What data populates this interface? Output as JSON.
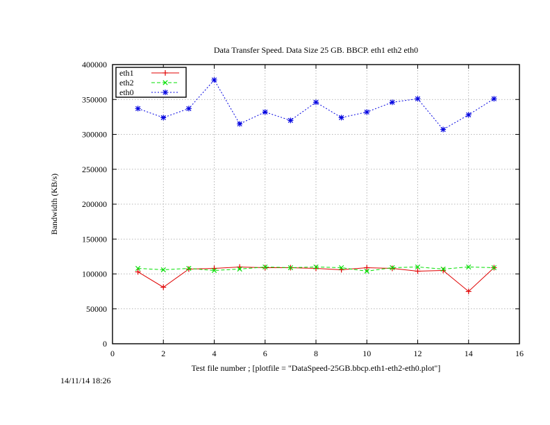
{
  "chart_data": {
    "type": "line",
    "title": "Data Transfer Speed. Data Size 25 GB. BBCP. eth1 eth2 eth0",
    "xlabel": "Test file number ; [plotfile = \"DataSpeed-25GB.bbcp.eth1-eth2-eth0.plot\"]",
    "ylabel": "Bandwidth (KB/s)",
    "xlim": [
      0,
      16
    ],
    "ylim": [
      0,
      400000
    ],
    "xticks": [
      0,
      2,
      4,
      6,
      8,
      10,
      12,
      14,
      16
    ],
    "yticks": [
      0,
      50000,
      100000,
      150000,
      200000,
      250000,
      300000,
      350000,
      400000
    ],
    "grid": true,
    "legend_position": "top-left",
    "timestamp": "14/11/14 18:26",
    "x": [
      1,
      2,
      3,
      4,
      5,
      6,
      7,
      8,
      9,
      10,
      11,
      12,
      13,
      14,
      15
    ],
    "series": [
      {
        "name": "eth1",
        "color": "#e00000",
        "marker": "plus",
        "dash": "solid",
        "values": [
          103000,
          81000,
          107000,
          108000,
          110000,
          109000,
          109000,
          108000,
          106000,
          109000,
          108000,
          104000,
          105000,
          75000,
          109000
        ]
      },
      {
        "name": "eth2",
        "color": "#00e000",
        "marker": "cross",
        "dash": "dashed",
        "values": [
          108000,
          106000,
          108000,
          105000,
          107000,
          110000,
          109000,
          110000,
          109000,
          104000,
          109000,
          110000,
          107000,
          110000,
          109000
        ]
      },
      {
        "name": "eth0",
        "color": "#0000e0",
        "marker": "star",
        "dash": "dotted",
        "values": [
          337000,
          324000,
          337000,
          378000,
          315000,
          332000,
          320000,
          346000,
          324000,
          332000,
          346000,
          351000,
          307000,
          328000,
          351000
        ]
      }
    ]
  }
}
